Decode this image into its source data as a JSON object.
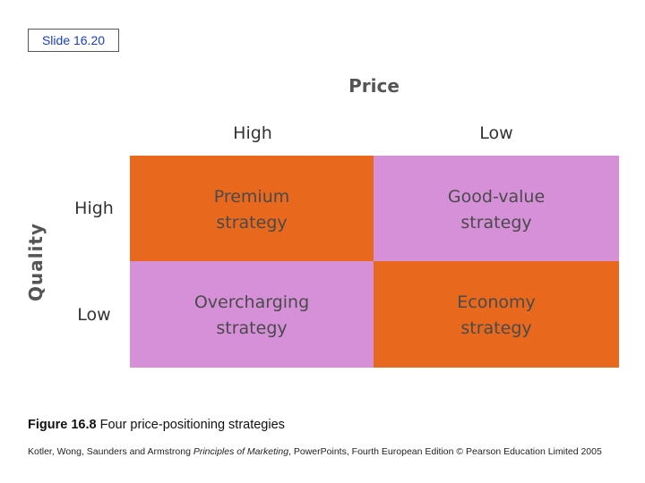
{
  "slide": {
    "label": "Slide 16.20"
  },
  "diagram": {
    "x_axis_title": "Price",
    "y_axis_title": "Quality",
    "columns": [
      "High",
      "Low"
    ],
    "rows": [
      "High",
      "Low"
    ],
    "cells": [
      [
        {
          "line1": "Premium",
          "line2": "strategy",
          "color": "#e8691e"
        },
        {
          "line1": "Good-value",
          "line2": "strategy",
          "color": "#d590d8"
        }
      ],
      [
        {
          "line1": "Overcharging",
          "line2": "strategy",
          "color": "#d590d8"
        },
        {
          "line1": "Economy",
          "line2": "strategy",
          "color": "#e8691e"
        }
      ]
    ]
  },
  "caption": {
    "figure": "Figure 16.8",
    "text": " Four price-positioning strategies"
  },
  "footer": {
    "prefix": "Kotler, Wong, Saunders and Armstrong ",
    "title": "Principles of Marketing",
    "suffix": ", PowerPoints, Fourth European Edition © Pearson Education Limited 2005"
  }
}
